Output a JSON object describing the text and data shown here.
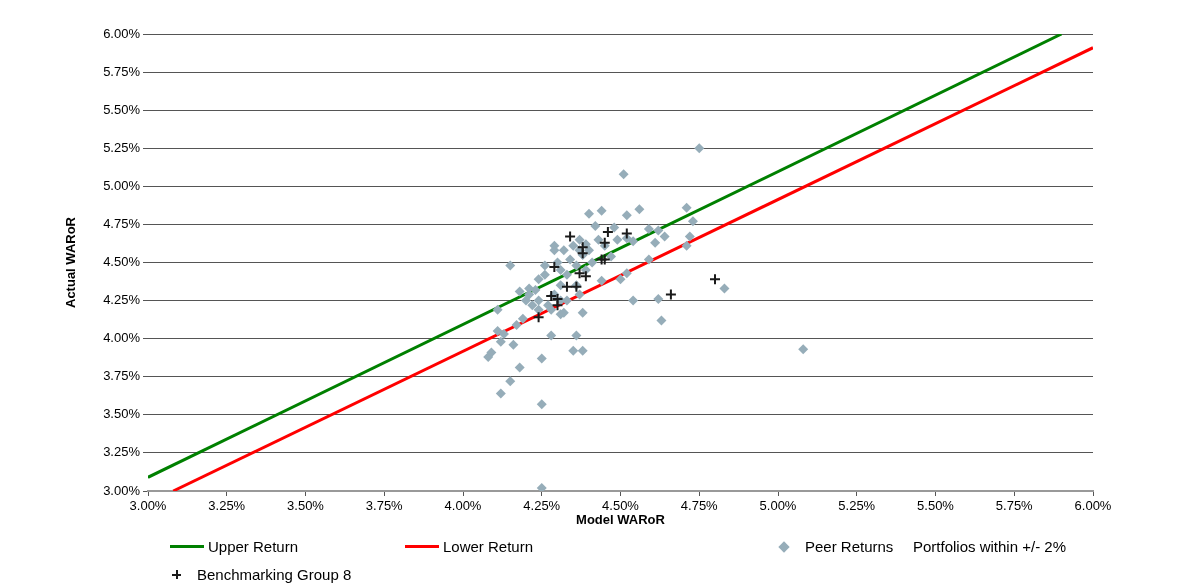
{
  "chart_data": {
    "type": "scatter",
    "xlabel": "Model WARoR",
    "ylabel": "Actual WARoR",
    "xlim": [
      3,
      6
    ],
    "ylim": [
      3,
      6
    ],
    "xticks": [
      {
        "value": 3,
        "label": "3.00%"
      },
      {
        "value": 3.25,
        "label": "3.25%"
      },
      {
        "value": 3.5,
        "label": "3.50%"
      },
      {
        "value": 3.75,
        "label": "3.75%"
      },
      {
        "value": 4,
        "label": "4.00%"
      },
      {
        "value": 4.25,
        "label": "4.25%"
      },
      {
        "value": 4.5,
        "label": "4.50%"
      },
      {
        "value": 4.75,
        "label": "4.75%"
      },
      {
        "value": 5,
        "label": "5.00%"
      },
      {
        "value": 5.25,
        "label": "5.25%"
      },
      {
        "value": 5.5,
        "label": "5.50%"
      },
      {
        "value": 5.75,
        "label": "5.75%"
      },
      {
        "value": 6,
        "label": "6.00%"
      }
    ],
    "yticks": [
      {
        "value": 3,
        "label": "3.00%"
      },
      {
        "value": 3.25,
        "label": "3.25%"
      },
      {
        "value": 3.5,
        "label": "3.50%"
      },
      {
        "value": 3.75,
        "label": "3.75%"
      },
      {
        "value": 4,
        "label": "4.00%"
      },
      {
        "value": 4.25,
        "label": "4.25%"
      },
      {
        "value": 4.5,
        "label": "4.50%"
      },
      {
        "value": 4.75,
        "label": "4.75%"
      },
      {
        "value": 5,
        "label": "5.00%"
      },
      {
        "value": 5.25,
        "label": "5.25%"
      },
      {
        "value": 5.5,
        "label": "5.50%"
      },
      {
        "value": 5.75,
        "label": "5.75%"
      },
      {
        "value": 6,
        "label": "6.00%"
      }
    ],
    "grid": "y",
    "legend": "bottom",
    "annotations": [
      "Portfolios within +/- 2%"
    ],
    "series": [
      {
        "name": "Upper Return",
        "type": "line",
        "color": "#008000",
        "marker": "none",
        "line_style": "solid",
        "x": [
          3,
          5.9
        ],
        "values": [
          3.09,
          6
        ]
      },
      {
        "name": "Lower Return",
        "type": "line",
        "color": "#ff0000",
        "marker": "none",
        "line_style": "solid",
        "x": [
          3.08,
          6
        ],
        "values": [
          3,
          5.91
        ]
      },
      {
        "name": "Peer Returns",
        "type": "scatter",
        "color": "#96adb9",
        "marker": "diamond",
        "x": [
          4.75,
          4.51,
          5.08,
          4.83,
          4.25,
          4.25,
          4.15,
          4.12,
          4.15,
          4.72,
          4.71,
          4.73,
          4.64,
          4.63,
          4.62,
          4.54,
          4.59,
          4.71,
          4.56,
          4.52,
          4.44,
          4.4,
          4.38,
          4.35,
          4.36,
          4.18,
          4.08,
          4.09,
          4.16,
          4.11,
          4.13,
          4.12,
          4.25,
          4.28,
          4.11,
          4.17,
          4.19,
          4.38,
          4.32,
          4.5,
          4.52,
          4.54,
          4.49,
          4.48,
          4.45,
          4.43,
          4.47,
          4.44,
          4.41,
          4.59,
          4.62,
          4.61,
          4.52,
          4.42,
          4.39,
          4.37,
          4.29,
          4.29,
          4.34,
          4.31,
          4.26,
          4.24,
          4.23,
          4.21,
          4.2,
          4.18,
          4.24,
          4.27,
          4.29,
          4.31,
          4.33,
          4.36,
          4.38,
          4.4,
          4.39,
          4.36,
          4.31,
          4.28,
          4.24,
          4.21,
          4.26,
          4.3,
          4.32,
          4.35,
          4.37,
          4.22,
          4.31,
          4.33,
          4.37
        ],
        "values": [
          5.25,
          5.08,
          3.93,
          4.33,
          3.02,
          3.57,
          3.72,
          3.64,
          4.48,
          4.67,
          4.86,
          4.77,
          4.67,
          4.12,
          4.26,
          4.25,
          4.52,
          4.61,
          4.85,
          4.81,
          4.84,
          4.82,
          3.92,
          3.92,
          4.02,
          3.81,
          3.88,
          3.91,
          3.96,
          4.05,
          4.03,
          3.98,
          3.87,
          4.02,
          4.19,
          4.09,
          4.13,
          4.17,
          4.17,
          4.39,
          4.43,
          4.64,
          4.65,
          4.73,
          4.61,
          4.65,
          4.54,
          4.38,
          4.5,
          4.72,
          4.71,
          4.63,
          4.66,
          4.74,
          4.62,
          4.58,
          4.61,
          4.58,
          4.52,
          4.45,
          4.42,
          4.39,
          4.32,
          4.29,
          4.25,
          4.31,
          4.25,
          4.22,
          4.29,
          4.35,
          4.42,
          4.48,
          4.55,
          4.58,
          4.45,
          4.35,
          4.25,
          4.19,
          4.19,
          4.33,
          4.48,
          4.5,
          4.58,
          4.61,
          4.65,
          4.22,
          4.16,
          4.25,
          4.29
        ]
      },
      {
        "name": "Benchmarking Group 8",
        "type": "scatter",
        "color": "#1a1a1a",
        "marker": "cross",
        "x": [
          4.34,
          4.38,
          4.38,
          4.46,
          4.45,
          4.52,
          4.44,
          4.45,
          4.29,
          4.37,
          4.39,
          4.33,
          4.36,
          4.28,
          4.3,
          4.3,
          4.24,
          4.8,
          4.66
        ],
        "values": [
          4.67,
          4.6,
          4.56,
          4.7,
          4.63,
          4.69,
          4.52,
          4.52,
          4.47,
          4.43,
          4.41,
          4.34,
          4.34,
          4.28,
          4.26,
          4.22,
          4.14,
          4.39,
          4.29
        ]
      }
    ]
  }
}
